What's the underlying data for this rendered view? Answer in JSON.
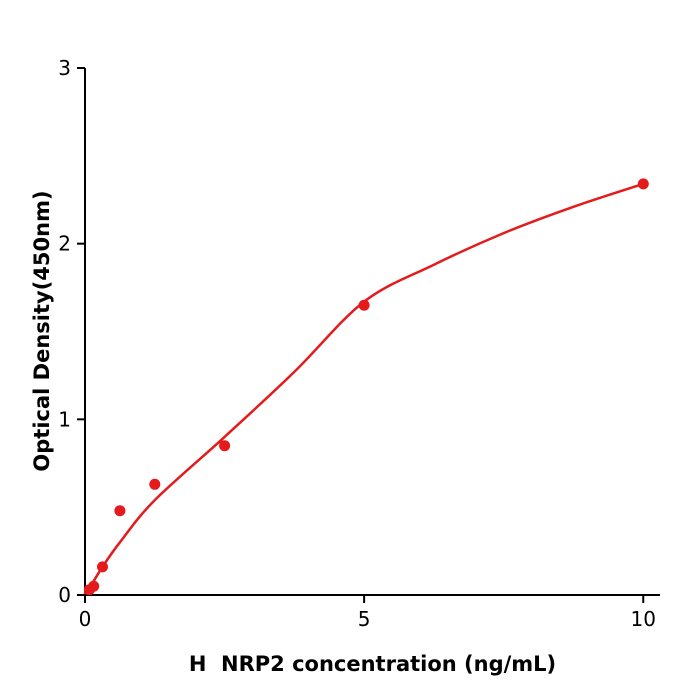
{
  "chart_data": {
    "type": "scatter",
    "xlabel": "H  NRP2 concentration (ng/mL)",
    "ylabel": "Optical Density(450nm)",
    "xlim": [
      0,
      10.3
    ],
    "ylim": [
      0,
      3
    ],
    "x_ticks": [
      0,
      5,
      10
    ],
    "y_ticks": [
      0,
      1,
      2,
      3
    ],
    "grid": false,
    "legend": null,
    "point_color": "#e41a1c",
    "line_color": "#e41a1c",
    "axis_color": "#000000",
    "points": {
      "x": [
        0.078,
        0.156,
        0.313,
        0.625,
        1.25,
        2.5,
        5,
        10
      ],
      "y": [
        0.03,
        0.05,
        0.16,
        0.48,
        0.63,
        0.85,
        1.65,
        2.34
      ]
    },
    "fit_curve": {
      "x": [
        0,
        0.156,
        0.313,
        0.625,
        1.25,
        2.5,
        3.75,
        5,
        6.25,
        7.5,
        8.75,
        10
      ],
      "y": [
        0.01,
        0.08,
        0.16,
        0.3,
        0.54,
        0.9,
        1.27,
        1.67,
        1.88,
        2.06,
        2.21,
        2.34
      ]
    }
  }
}
